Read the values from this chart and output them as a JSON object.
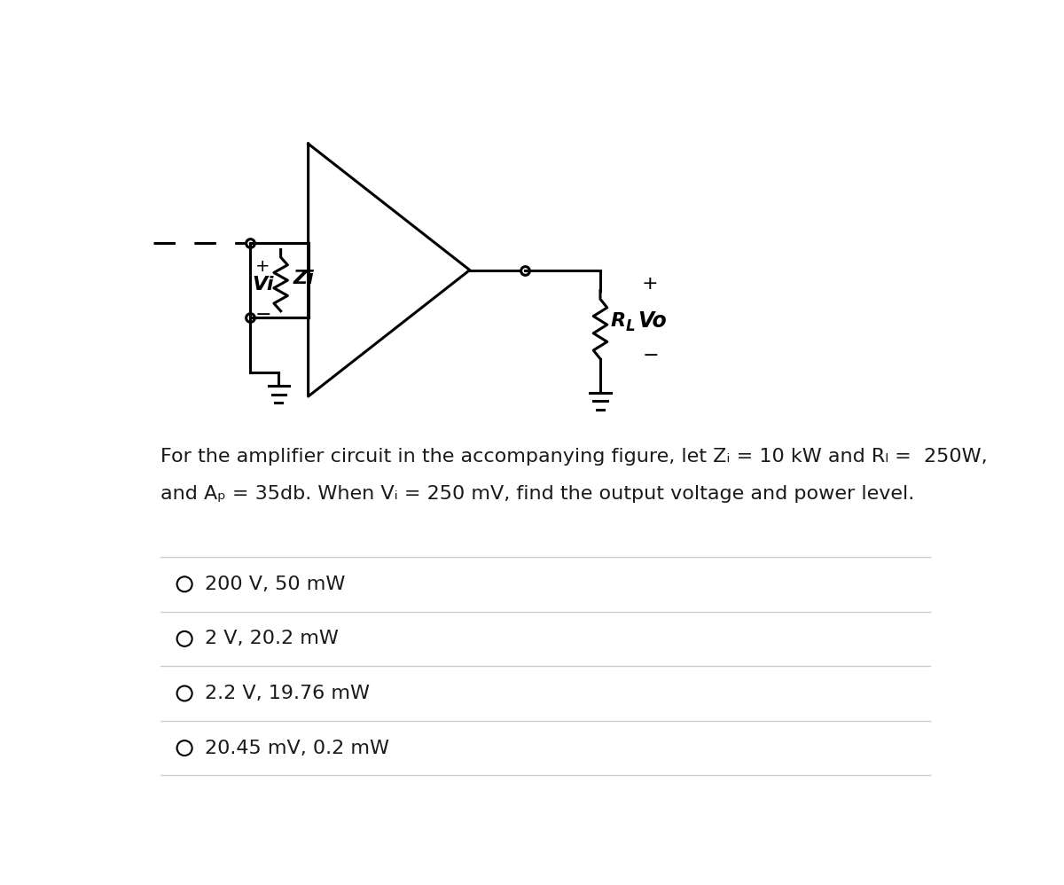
{
  "bg_color": "#ffffff",
  "fig_width": 12.0,
  "fig_height": 9.98,
  "question_line1": "For the amplifier circuit in the accompanying figure, let Zᵢ = 10 kW and Rₗ =  250W,",
  "question_line2": "and Aₚ = 35db. When Vᵢ = 250 mV, find the output voltage and power level.",
  "choices": [
    "200 V, 50 mW",
    "2 V, 20.2 mW",
    "2.2 V, 19.76 mW",
    "20.45 mV, 0.2 mW"
  ],
  "font_size_question": 16,
  "font_size_choices": 16,
  "circuit_color": "#000000",
  "text_color": "#1a1a1a",
  "sep_color": "#cccccc"
}
